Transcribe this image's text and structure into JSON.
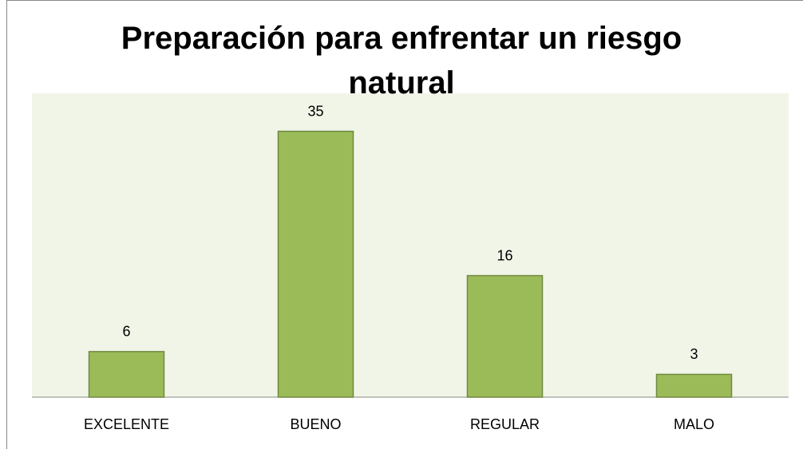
{
  "chart_data": {
    "type": "bar",
    "title": "Preparación para enfrentar un riesgo natural",
    "categories": [
      "EXCELENTE",
      "BUENO",
      "REGULAR",
      "MALO"
    ],
    "values": [
      6,
      35,
      16,
      3
    ],
    "color": "#9bbb59",
    "ylim": [
      0,
      40
    ]
  }
}
